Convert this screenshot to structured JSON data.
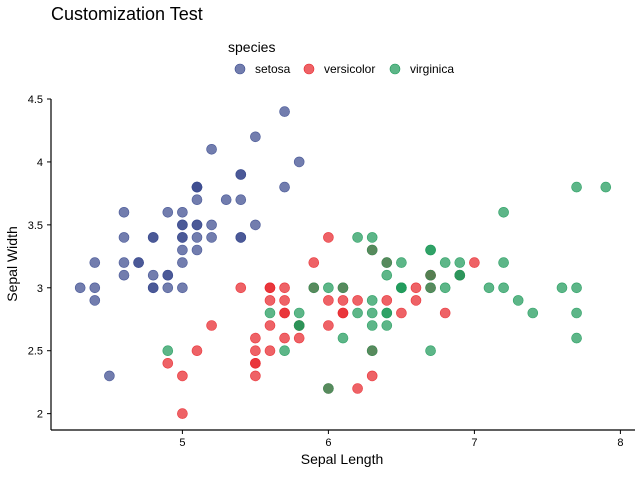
{
  "chart_data": {
    "type": "scatter",
    "title": "Customization Test",
    "xlabel": "Sepal Length",
    "ylabel": "Sepal Width",
    "xlim": [
      4.1,
      8.1
    ],
    "ylim": [
      1.87,
      4.5
    ],
    "xticks": [
      5,
      6,
      7,
      8
    ],
    "yticks": [
      2,
      2.5,
      3,
      3.5,
      4,
      4.5
    ],
    "grid": false,
    "legend": {
      "title": "species",
      "placement": "top-center"
    },
    "series": [
      {
        "name": "setosa",
        "color": "#3b4b8f",
        "points": [
          [
            5.1,
            3.5
          ],
          [
            4.9,
            3.0
          ],
          [
            4.7,
            3.2
          ],
          [
            4.6,
            3.1
          ],
          [
            5.0,
            3.6
          ],
          [
            5.4,
            3.9
          ],
          [
            4.6,
            3.4
          ],
          [
            5.0,
            3.4
          ],
          [
            4.4,
            2.9
          ],
          [
            4.9,
            3.1
          ],
          [
            5.4,
            3.7
          ],
          [
            4.8,
            3.4
          ],
          [
            4.8,
            3.0
          ],
          [
            4.3,
            3.0
          ],
          [
            5.8,
            4.0
          ],
          [
            5.7,
            4.4
          ],
          [
            5.4,
            3.9
          ],
          [
            5.1,
            3.5
          ],
          [
            5.7,
            3.8
          ],
          [
            5.1,
            3.8
          ],
          [
            5.4,
            3.4
          ],
          [
            5.1,
            3.7
          ],
          [
            4.6,
            3.6
          ],
          [
            5.1,
            3.3
          ],
          [
            4.8,
            3.4
          ],
          [
            5.0,
            3.0
          ],
          [
            5.0,
            3.4
          ],
          [
            5.2,
            3.5
          ],
          [
            5.2,
            3.4
          ],
          [
            4.7,
            3.2
          ],
          [
            4.8,
            3.1
          ],
          [
            5.4,
            3.4
          ],
          [
            5.2,
            4.1
          ],
          [
            5.5,
            4.2
          ],
          [
            4.9,
            3.1
          ],
          [
            5.0,
            3.2
          ],
          [
            5.5,
            3.5
          ],
          [
            4.9,
            3.6
          ],
          [
            4.4,
            3.0
          ],
          [
            5.1,
            3.4
          ],
          [
            5.0,
            3.5
          ],
          [
            4.5,
            2.3
          ],
          [
            4.4,
            3.2
          ],
          [
            5.0,
            3.5
          ],
          [
            5.1,
            3.8
          ],
          [
            4.8,
            3.0
          ],
          [
            5.1,
            3.8
          ],
          [
            4.6,
            3.2
          ],
          [
            5.3,
            3.7
          ],
          [
            5.0,
            3.3
          ]
        ]
      },
      {
        "name": "versicolor",
        "color": "#e8262b",
        "points": [
          [
            7.0,
            3.2
          ],
          [
            6.4,
            3.2
          ],
          [
            6.9,
            3.1
          ],
          [
            5.5,
            2.3
          ],
          [
            6.5,
            2.8
          ],
          [
            5.7,
            2.8
          ],
          [
            6.3,
            3.3
          ],
          [
            4.9,
            2.4
          ],
          [
            6.6,
            2.9
          ],
          [
            5.2,
            2.7
          ],
          [
            5.0,
            2.0
          ],
          [
            5.9,
            3.0
          ],
          [
            6.0,
            2.2
          ],
          [
            6.1,
            2.9
          ],
          [
            5.6,
            2.9
          ],
          [
            6.7,
            3.1
          ],
          [
            5.6,
            3.0
          ],
          [
            5.8,
            2.7
          ],
          [
            6.2,
            2.2
          ],
          [
            5.6,
            2.5
          ],
          [
            5.9,
            3.2
          ],
          [
            6.1,
            2.8
          ],
          [
            6.3,
            2.5
          ],
          [
            6.1,
            2.8
          ],
          [
            6.4,
            2.9
          ],
          [
            6.6,
            3.0
          ],
          [
            6.8,
            2.8
          ],
          [
            6.7,
            3.0
          ],
          [
            6.0,
            2.9
          ],
          [
            5.7,
            2.6
          ],
          [
            5.5,
            2.4
          ],
          [
            5.5,
            2.4
          ],
          [
            5.8,
            2.7
          ],
          [
            6.0,
            2.7
          ],
          [
            5.4,
            3.0
          ],
          [
            6.0,
            3.4
          ],
          [
            6.7,
            3.1
          ],
          [
            6.3,
            2.3
          ],
          [
            5.6,
            3.0
          ],
          [
            5.5,
            2.5
          ],
          [
            5.5,
            2.6
          ],
          [
            6.1,
            3.0
          ],
          [
            5.8,
            2.6
          ],
          [
            5.0,
            2.3
          ],
          [
            5.6,
            2.7
          ],
          [
            5.7,
            3.0
          ],
          [
            5.7,
            2.9
          ],
          [
            6.2,
            2.9
          ],
          [
            5.1,
            2.5
          ],
          [
            5.7,
            2.8
          ]
        ]
      },
      {
        "name": "virginica",
        "color": "#1e9a5a",
        "points": [
          [
            6.3,
            3.3
          ],
          [
            5.8,
            2.7
          ],
          [
            7.1,
            3.0
          ],
          [
            6.3,
            2.9
          ],
          [
            6.5,
            3.0
          ],
          [
            7.6,
            3.0
          ],
          [
            4.9,
            2.5
          ],
          [
            7.3,
            2.9
          ],
          [
            6.7,
            2.5
          ],
          [
            7.2,
            3.6
          ],
          [
            6.5,
            3.2
          ],
          [
            6.4,
            2.7
          ],
          [
            6.8,
            3.0
          ],
          [
            5.7,
            2.5
          ],
          [
            5.8,
            2.8
          ],
          [
            6.4,
            3.2
          ],
          [
            6.5,
            3.0
          ],
          [
            7.7,
            3.8
          ],
          [
            7.7,
            2.6
          ],
          [
            6.0,
            2.2
          ],
          [
            6.9,
            3.2
          ],
          [
            5.6,
            2.8
          ],
          [
            7.7,
            2.8
          ],
          [
            6.3,
            2.7
          ],
          [
            6.7,
            3.3
          ],
          [
            7.2,
            3.2
          ],
          [
            6.2,
            2.8
          ],
          [
            6.1,
            3.0
          ],
          [
            6.4,
            2.8
          ],
          [
            7.2,
            3.0
          ],
          [
            7.4,
            2.8
          ],
          [
            7.9,
            3.8
          ],
          [
            6.4,
            2.8
          ],
          [
            6.3,
            2.8
          ],
          [
            6.1,
            2.6
          ],
          [
            7.7,
            3.0
          ],
          [
            6.3,
            3.4
          ],
          [
            6.4,
            3.1
          ],
          [
            6.0,
            3.0
          ],
          [
            6.9,
            3.1
          ],
          [
            6.7,
            3.1
          ],
          [
            6.9,
            3.1
          ],
          [
            5.8,
            2.7
          ],
          [
            6.8,
            3.2
          ],
          [
            6.7,
            3.3
          ],
          [
            6.7,
            3.0
          ],
          [
            6.3,
            2.5
          ],
          [
            6.5,
            3.0
          ],
          [
            6.2,
            3.4
          ],
          [
            5.9,
            3.0
          ]
        ]
      }
    ]
  }
}
